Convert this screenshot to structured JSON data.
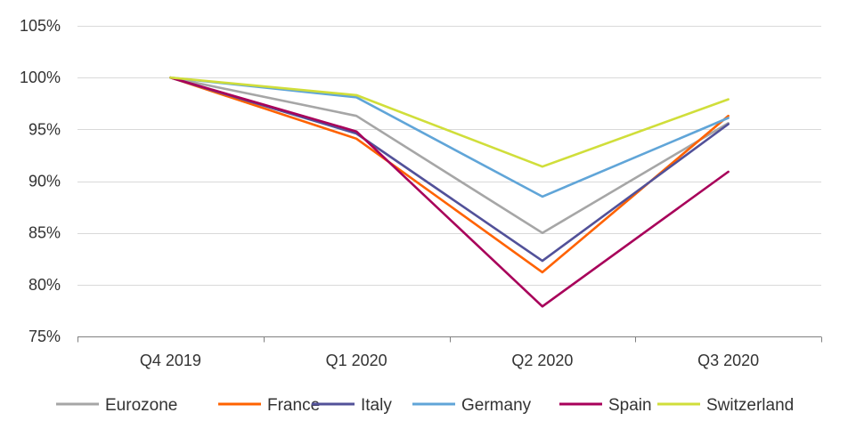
{
  "chart_data": {
    "type": "line",
    "title": "",
    "xlabel": "",
    "ylabel": "",
    "categories": [
      "Q4 2019",
      "Q1 2020",
      "Q2 2020",
      "Q3 2020"
    ],
    "ylim": [
      75,
      105
    ],
    "yticks": [
      75,
      80,
      85,
      90,
      95,
      100,
      105
    ],
    "ytick_labels": [
      "75%",
      "80%",
      "85%",
      "90%",
      "95%",
      "100%",
      "105%"
    ],
    "grid": true,
    "legend_position": "bottom",
    "series": [
      {
        "name": "Eurozone",
        "color": "#a6a6a6",
        "values": [
          100,
          96.3,
          85.0,
          95.6
        ]
      },
      {
        "name": "France",
        "color": "#ff6200",
        "values": [
          100,
          94.1,
          81.2,
          96.3
        ]
      },
      {
        "name": "Italy",
        "color": "#525199",
        "values": [
          100,
          94.6,
          82.3,
          95.5
        ]
      },
      {
        "name": "Germany",
        "color": "#60a5d8",
        "values": [
          100,
          98.1,
          88.5,
          96.1
        ]
      },
      {
        "name": "Spain",
        "color": "#a8005a",
        "values": [
          100,
          94.8,
          77.9,
          90.9
        ]
      },
      {
        "name": "Switzerland",
        "color": "#d0de3a",
        "values": [
          100,
          98.3,
          91.4,
          97.9
        ]
      }
    ]
  }
}
